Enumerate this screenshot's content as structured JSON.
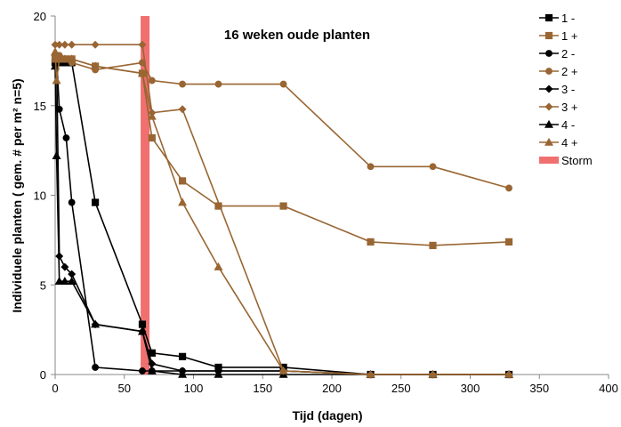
{
  "chart_data": {
    "type": "line",
    "title": "16 weken oude planten",
    "xlabel": "Tijd (dagen)",
    "ylabel": "Individuele planten ( gem. # per m² n=5)",
    "xlim": [
      0,
      400
    ],
    "ylim": [
      0,
      20
    ],
    "xticks": [
      "0",
      "50",
      "100",
      "150",
      "200",
      "250",
      "300",
      "350",
      "400"
    ],
    "yticks": [
      "0",
      "5",
      "10",
      "15",
      "20"
    ],
    "legend_position": "right",
    "colors": {
      "minus": "#000000",
      "plus": "#996633",
      "storm": "#f07070"
    },
    "storm": {
      "label": "Storm",
      "x": 65
    },
    "series": [
      {
        "name": "1 -",
        "marker": "square",
        "color": "minus",
        "points": [
          [
            0,
            17.4
          ],
          [
            1,
            17.4
          ],
          [
            2,
            17.4
          ],
          [
            3,
            17.4
          ],
          [
            5,
            17.4
          ],
          [
            7,
            17.4
          ],
          [
            9,
            17.4
          ],
          [
            12,
            17.4
          ],
          [
            29,
            9.6
          ],
          [
            63,
            2.8
          ],
          [
            70,
            1.2
          ],
          [
            92,
            1.0
          ],
          [
            118,
            0.4
          ],
          [
            165,
            0.4
          ],
          [
            228,
            0
          ],
          [
            273,
            0
          ],
          [
            328,
            0
          ]
        ]
      },
      {
        "name": "1 +",
        "marker": "square",
        "color": "plus",
        "points": [
          [
            0,
            17.6
          ],
          [
            3,
            17.6
          ],
          [
            7,
            17.6
          ],
          [
            12,
            17.6
          ],
          [
            29,
            17.2
          ],
          [
            63,
            16.8
          ],
          [
            70,
            13.2
          ],
          [
            92,
            10.8
          ],
          [
            118,
            9.4
          ],
          [
            165,
            9.4
          ],
          [
            228,
            7.4
          ],
          [
            273,
            7.2
          ],
          [
            328,
            7.4
          ]
        ]
      },
      {
        "name": "2 -",
        "marker": "circle",
        "color": "minus",
        "points": [
          [
            0,
            17.6
          ],
          [
            1,
            17.6
          ],
          [
            3,
            14.8
          ],
          [
            8,
            13.2
          ],
          [
            12,
            9.6
          ],
          [
            29,
            0.4
          ],
          [
            63,
            0.2
          ],
          [
            70,
            0.2
          ],
          [
            92,
            0.2
          ],
          [
            118,
            0.2
          ],
          [
            165,
            0.2
          ],
          [
            228,
            0
          ],
          [
            273,
            0
          ],
          [
            328,
            0
          ]
        ]
      },
      {
        "name": "2 +",
        "marker": "circle",
        "color": "plus",
        "points": [
          [
            0,
            17.8
          ],
          [
            3,
            17.8
          ],
          [
            7,
            17.6
          ],
          [
            12,
            17.4
          ],
          [
            29,
            17.0
          ],
          [
            63,
            17.4
          ],
          [
            70,
            16.4
          ],
          [
            92,
            16.2
          ],
          [
            118,
            16.2
          ],
          [
            165,
            16.2
          ],
          [
            228,
            11.6
          ],
          [
            273,
            11.6
          ],
          [
            328,
            10.4
          ]
        ]
      },
      {
        "name": "3 -",
        "marker": "diamond",
        "color": "minus",
        "points": [
          [
            0,
            17.8
          ],
          [
            1,
            17.6
          ],
          [
            3,
            6.6
          ],
          [
            7,
            6.0
          ],
          [
            12,
            5.6
          ],
          [
            29,
            2.8
          ],
          [
            63,
            2.4
          ],
          [
            70,
            0.6
          ],
          [
            92,
            0.2
          ],
          [
            118,
            0.2
          ],
          [
            165,
            0.2
          ],
          [
            228,
            0
          ],
          [
            273,
            0
          ],
          [
            328,
            0
          ]
        ]
      },
      {
        "name": "3 +",
        "marker": "diamond",
        "color": "plus",
        "points": [
          [
            0,
            18.4
          ],
          [
            3,
            18.4
          ],
          [
            7,
            18.4
          ],
          [
            12,
            18.4
          ],
          [
            29,
            18.4
          ],
          [
            63,
            18.4
          ],
          [
            70,
            14.6
          ],
          [
            92,
            14.8
          ],
          [
            165,
            0.2
          ],
          [
            228,
            0
          ],
          [
            273,
            0
          ],
          [
            328,
            0
          ]
        ]
      },
      {
        "name": "4 -",
        "marker": "triangle",
        "color": "minus",
        "points": [
          [
            0,
            17.2
          ],
          [
            1,
            12.2
          ],
          [
            3,
            5.2
          ],
          [
            7,
            5.2
          ],
          [
            12,
            5.2
          ],
          [
            29,
            2.8
          ],
          [
            63,
            2.4
          ],
          [
            70,
            0.2
          ],
          [
            92,
            0
          ],
          [
            118,
            0
          ],
          [
            165,
            0
          ],
          [
            228,
            0
          ],
          [
            273,
            0
          ],
          [
            328,
            0
          ]
        ]
      },
      {
        "name": "4 +",
        "marker": "triangle",
        "color": "plus",
        "points": [
          [
            0,
            18.0
          ],
          [
            1,
            16.4
          ],
          [
            3,
            17.6
          ],
          [
            7,
            17.6
          ],
          [
            12,
            17.6
          ],
          [
            29,
            17.2
          ],
          [
            63,
            16.8
          ],
          [
            70,
            14.4
          ],
          [
            92,
            9.6
          ],
          [
            118,
            6.0
          ],
          [
            165,
            0.2
          ],
          [
            228,
            0
          ],
          [
            273,
            0
          ],
          [
            328,
            0
          ]
        ]
      }
    ]
  }
}
